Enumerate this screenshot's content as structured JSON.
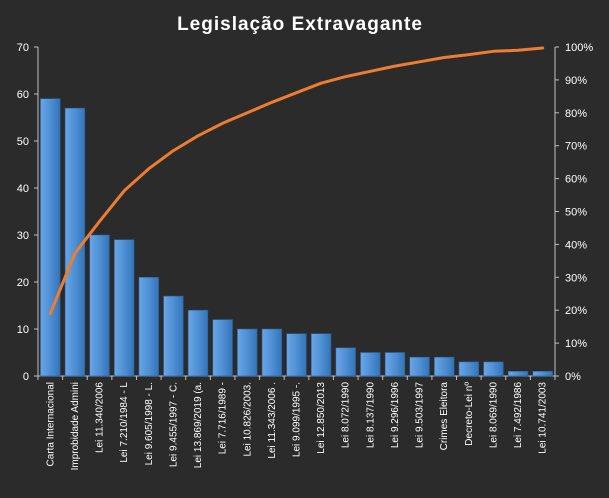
{
  "chart_data": {
    "type": "bar",
    "title": "Legislação  Extravagante",
    "categories": [
      "Carta Internacional",
      "Improbidade Admini",
      "Lei 11.340/2006",
      "Lei 7.210/1984 - L",
      "Lei 9.605/1998 - L.",
      "Lei 9.455/1997 - C.",
      "Lei 13.869/2019 (a.",
      "Lei 7.716/1989 -",
      "Lei 10.826/2003.",
      "Lei 11.343/2006 .",
      "Lei 9.099/1995 -.",
      "Lei 12.850/2013",
      "Lei 8.072/1990",
      "Lei 8.137/1990",
      "Lei 9.296/1996",
      "Lei 9.503/1997",
      "Crimes Eleitora",
      "Decreto-Lei nº",
      "Lei 8.069/1990",
      "Lei 7.492/1986",
      "Lei 10.741/2003"
    ],
    "series": [
      {
        "type": "bar",
        "axis": "left",
        "values": [
          59,
          57,
          30,
          29,
          21,
          17,
          14,
          12,
          10,
          10,
          9,
          9,
          6,
          5,
          5,
          4,
          4,
          3,
          3,
          1,
          1
        ]
      },
      {
        "type": "line",
        "axis": "right",
        "unit": "%",
        "values": [
          19.0,
          37.3,
          47.0,
          56.3,
          63.0,
          68.5,
          73.0,
          76.8,
          80.0,
          83.2,
          86.1,
          89.0,
          91.0,
          92.6,
          94.2,
          95.5,
          96.8,
          97.7,
          98.7,
          99.0,
          99.7
        ]
      }
    ],
    "ylim": [
      0,
      70
    ],
    "yticks": [
      0,
      10,
      20,
      30,
      40,
      50,
      60,
      70
    ],
    "y2lim": [
      0,
      100
    ],
    "y2ticks": [
      "0%",
      "10%",
      "20%",
      "30%",
      "40%",
      "50%",
      "60%",
      "70%",
      "80%",
      "90%",
      "100%"
    ],
    "grid": false,
    "legend": "none",
    "colors": {
      "background": "#2b2b2b",
      "bar": "#4f8fd4",
      "line": "#ed7d31",
      "axis": "#bfbfbf",
      "text": "#ffffff"
    }
  }
}
